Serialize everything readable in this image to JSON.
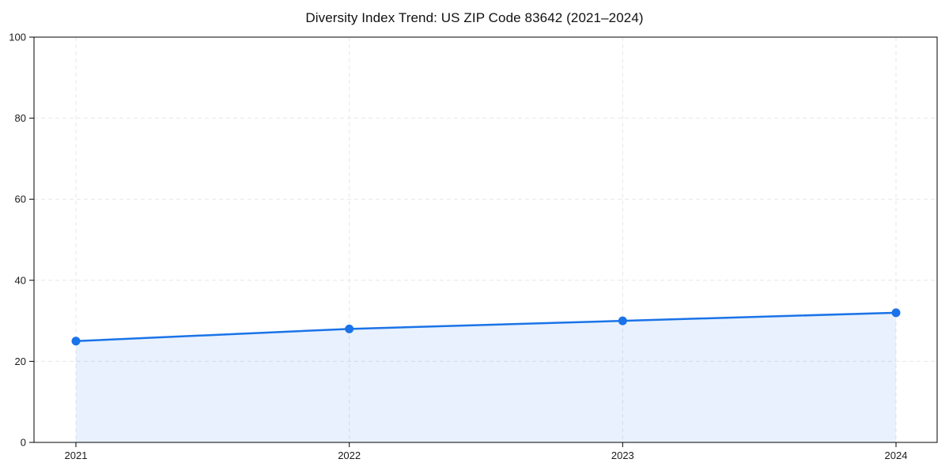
{
  "chart_data": {
    "type": "line",
    "title": "Diversity Index Trend: US ZIP Code 83642 (2021–2024)",
    "categories": [
      "2021",
      "2022",
      "2023",
      "2024"
    ],
    "series": [
      {
        "name": "Diversity Index",
        "values": [
          25,
          28,
          30,
          32
        ]
      }
    ],
    "xlabel": "",
    "ylabel": "",
    "ylim": [
      0,
      100
    ],
    "yticks": [
      0,
      20,
      40,
      60,
      80,
      100
    ],
    "grid": "dashed, horizontal and vertical",
    "legend_position": "none",
    "colors": {
      "line": "#1a73e8",
      "marker": "#1a73e8",
      "area_fill": "#1a73e8",
      "area_fill_opacity": 0.1,
      "grid": "#e7e7e7",
      "frame": "#000000",
      "tick_text": "#1a1a1a",
      "background": "#ffffff"
    },
    "marker_style": "circle",
    "area_filled_to_zero": true
  }
}
